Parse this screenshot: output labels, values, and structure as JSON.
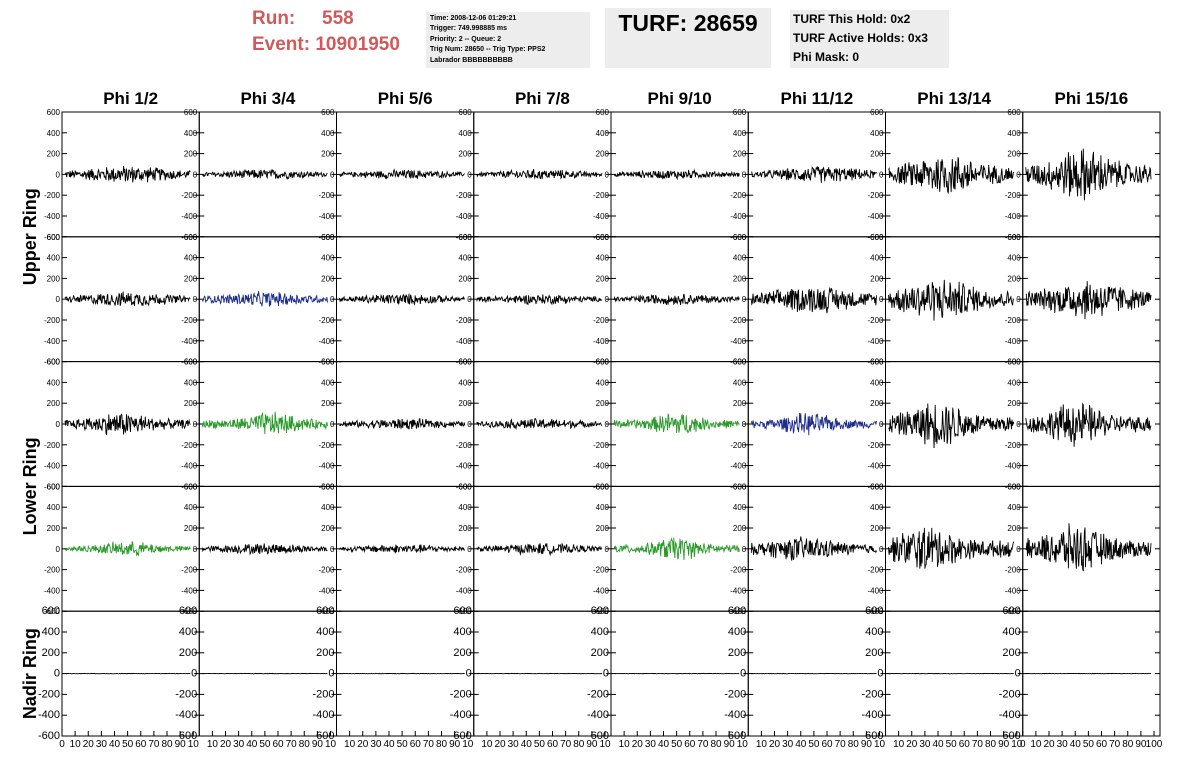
{
  "header": {
    "run_label": "Run:",
    "run_value": "558",
    "event_label": "Event:",
    "event_value": "10901950",
    "info_lines": [
      "Time: 2008-12-06 01:29:21",
      "Trigger: 749.998885 ms",
      "Priority: 2 -- Queue: 2",
      "Trig Num: 28650 -- Trig Type: PPS2",
      "Labrador BBBBBBBBBB"
    ],
    "turf_text": "TURF: 28659",
    "turf_lines": [
      "TURF This Hold: 0x2",
      "TURF Active Holds: 0x3",
      "Phi Mask: 0"
    ]
  },
  "column_titles": [
    "Phi 1/2",
    "Phi 3/4",
    "Phi 5/6",
    "Phi 7/8",
    "Phi 9/10",
    "Phi 11/12",
    "Phi 13/14",
    "Phi 15/16"
  ],
  "ring_labels": [
    "Upper Ring",
    "Lower Ring",
    "Nadir Ring"
  ],
  "colors": {
    "black": "#000000",
    "blue": "#1f2d8c",
    "green": "#2a9a2a"
  },
  "chart_data": {
    "type": "line",
    "description_of_grid": "5 rows x 8 columns of waveform panels",
    "xlim": [
      0,
      100
    ],
    "ylim": [
      -600,
      600
    ],
    "yticks": [
      600,
      400,
      200,
      0,
      -200,
      -400,
      -600
    ],
    "xtick_labels_first": [
      "0",
      "10",
      "20",
      "30",
      "40",
      "50",
      "60",
      "70",
      "80",
      "90",
      "100"
    ],
    "xtick_labels_other": [
      "10",
      "20",
      "30",
      "40",
      "50",
      "60",
      "70",
      "80",
      "90",
      "10"
    ],
    "panels": [
      [
        {
          "color": "black",
          "amp": 95,
          "center": 50,
          "width": 60
        },
        {
          "color": "black",
          "amp": 55,
          "center": 50,
          "width": 60
        },
        {
          "color": "black",
          "amp": 50,
          "center": 50,
          "width": 60
        },
        {
          "color": "black",
          "amp": 55,
          "center": 50,
          "width": 60
        },
        {
          "color": "black",
          "amp": 50,
          "center": 50,
          "width": 60
        },
        {
          "color": "black",
          "amp": 90,
          "center": 55,
          "width": 55
        },
        {
          "color": "black",
          "amp": 230,
          "center": 45,
          "width": 45
        },
        {
          "color": "black",
          "amp": 290,
          "center": 45,
          "width": 40
        }
      ],
      [
        {
          "color": "black",
          "amp": 80,
          "center": 50,
          "width": 60
        },
        {
          "color": "blue",
          "amp": 80,
          "center": 50,
          "width": 60
        },
        {
          "color": "black",
          "amp": 60,
          "center": 50,
          "width": 60
        },
        {
          "color": "black",
          "amp": 55,
          "center": 50,
          "width": 60
        },
        {
          "color": "black",
          "amp": 60,
          "center": 50,
          "width": 60
        },
        {
          "color": "black",
          "amp": 150,
          "center": 50,
          "width": 55
        },
        {
          "color": "black",
          "amp": 230,
          "center": 40,
          "width": 50
        },
        {
          "color": "black",
          "amp": 220,
          "center": 50,
          "width": 50
        }
      ],
      [
        {
          "color": "black",
          "amp": 130,
          "center": 45,
          "width": 40
        },
        {
          "color": "green",
          "amp": 130,
          "center": 55,
          "width": 35
        },
        {
          "color": "black",
          "amp": 60,
          "center": 50,
          "width": 60
        },
        {
          "color": "black",
          "amp": 60,
          "center": 50,
          "width": 60
        },
        {
          "color": "green",
          "amp": 130,
          "center": 50,
          "width": 30
        },
        {
          "color": "blue",
          "amp": 120,
          "center": 45,
          "width": 35
        },
        {
          "color": "black",
          "amp": 250,
          "center": 40,
          "width": 40
        },
        {
          "color": "black",
          "amp": 240,
          "center": 40,
          "width": 35
        }
      ],
      [
        {
          "color": "green",
          "amp": 80,
          "center": 50,
          "width": 40
        },
        {
          "color": "black",
          "amp": 60,
          "center": 50,
          "width": 60
        },
        {
          "color": "black",
          "amp": 50,
          "center": 50,
          "width": 60
        },
        {
          "color": "black",
          "amp": 60,
          "center": 50,
          "width": 60
        },
        {
          "color": "green",
          "amp": 130,
          "center": 50,
          "width": 30
        },
        {
          "color": "black",
          "amp": 130,
          "center": 40,
          "width": 50
        },
        {
          "color": "black",
          "amp": 250,
          "center": 30,
          "width": 40
        },
        {
          "color": "black",
          "amp": 260,
          "center": 40,
          "width": 40
        }
      ],
      [
        {
          "color": "black",
          "amp": 3,
          "center": 50,
          "width": 100
        },
        {
          "color": "black",
          "amp": 3,
          "center": 50,
          "width": 100
        },
        {
          "color": "black",
          "amp": 3,
          "center": 50,
          "width": 100
        },
        {
          "color": "black",
          "amp": 3,
          "center": 50,
          "width": 100
        },
        {
          "color": "black",
          "amp": 3,
          "center": 50,
          "width": 100
        },
        {
          "color": "black",
          "amp": 3,
          "center": 50,
          "width": 100
        },
        {
          "color": "black",
          "amp": 3,
          "center": 50,
          "width": 100
        },
        {
          "color": "black",
          "amp": 3,
          "center": 50,
          "width": 100
        }
      ]
    ]
  }
}
